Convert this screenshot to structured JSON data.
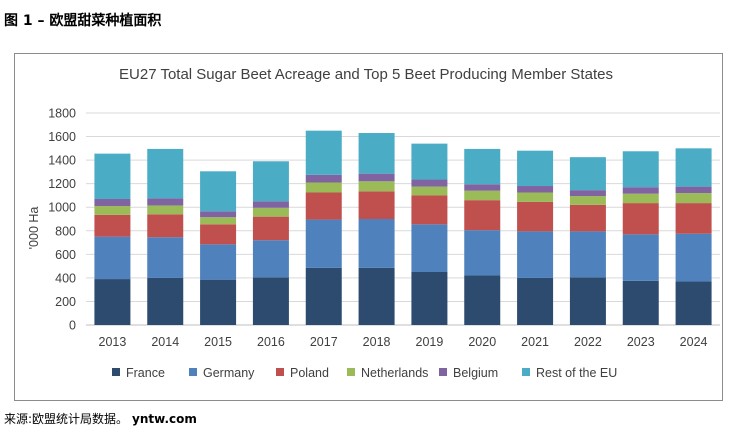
{
  "figure_title": "图 1 – 欧盟甜菜种植面积",
  "source_text": "来源:欧盟统计局数据。",
  "source_site": "yntw.com",
  "chart_data": {
    "type": "bar",
    "stacked": true,
    "title": "EU27 Total Sugar Beet Acreage and Top 5 Beet Producing Member States",
    "xlabel": "",
    "ylabel": "'000 Ha",
    "ylim": [
      0,
      1800
    ],
    "yticks": [
      0,
      200,
      400,
      600,
      800,
      1000,
      1200,
      1400,
      1600,
      1800
    ],
    "grid": true,
    "legend_position": "bottom",
    "categories": [
      "2013",
      "2014",
      "2015",
      "2016",
      "2017",
      "2018",
      "2019",
      "2020",
      "2021",
      "2022",
      "2023",
      "2024"
    ],
    "series": [
      {
        "name": "France",
        "color": "#2d4b6e",
        "values": [
          390,
          400,
          385,
          405,
          485,
          485,
          450,
          420,
          400,
          405,
          375,
          370
        ]
      },
      {
        "name": "Germany",
        "color": "#4f81bd",
        "values": [
          360,
          345,
          300,
          315,
          410,
          415,
          405,
          385,
          395,
          390,
          395,
          405
        ]
      },
      {
        "name": "Poland",
        "color": "#c0504d",
        "values": [
          185,
          195,
          170,
          200,
          230,
          235,
          245,
          255,
          250,
          225,
          265,
          260
        ]
      },
      {
        "name": "Netherlands",
        "color": "#9bbb59",
        "values": [
          75,
          75,
          60,
          75,
          85,
          85,
          75,
          80,
          80,
          75,
          80,
          85
        ]
      },
      {
        "name": "Belgium",
        "color": "#8064a2",
        "values": [
          60,
          60,
          50,
          55,
          65,
          65,
          60,
          55,
          55,
          50,
          55,
          55
        ]
      },
      {
        "name": "Rest of the EU",
        "color": "#4bacc6",
        "values": [
          385,
          420,
          340,
          340,
          375,
          345,
          305,
          300,
          300,
          280,
          305,
          325
        ]
      }
    ]
  }
}
